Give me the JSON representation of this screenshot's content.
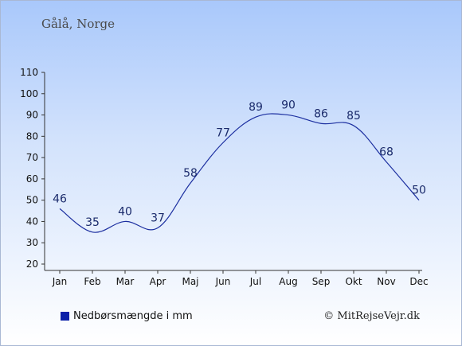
{
  "header": {
    "title": "Gålå, Norge"
  },
  "legend": {
    "label": "Nedbørsmængde i mm",
    "color": "#0a1ea8"
  },
  "credit": {
    "text": "© MitRejseVejr.dk"
  },
  "colors": {
    "line": "#1c2fa0",
    "axis": "#333333",
    "label": "#1a2a6b"
  },
  "chart_data": {
    "type": "line",
    "title": "Gålå, Norge",
    "categories": [
      "Jan",
      "Feb",
      "Mar",
      "Apr",
      "Maj",
      "Jun",
      "Jul",
      "Aug",
      "Sep",
      "Okt",
      "Nov",
      "Dec"
    ],
    "series": [
      {
        "name": "Nedbørsmængde i mm",
        "values": [
          46,
          35,
          40,
          37,
          58,
          77,
          89,
          90,
          86,
          85,
          68,
          50
        ]
      }
    ],
    "ylim": [
      20,
      110
    ],
    "yticks": [
      20,
      30,
      40,
      50,
      60,
      70,
      80,
      90,
      100,
      110
    ],
    "xlabel": "",
    "ylabel": "",
    "grid": false,
    "legend_position": "bottom-left"
  }
}
